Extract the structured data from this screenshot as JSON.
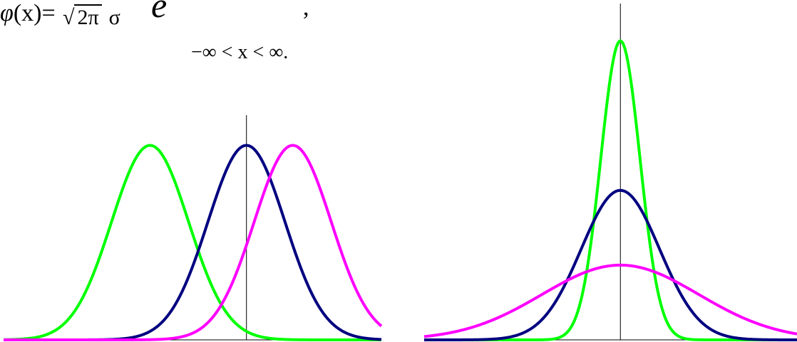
{
  "formula": {
    "lhs_fn": "φ",
    "lhs_arg": "(x)=",
    "denominator_sqrt_sign": "√",
    "denominator_radicand": "2π",
    "denominator_sigma": "σ",
    "exp_base": "e",
    "trailing_comma": ",",
    "domain": "−∞ < x < ∞."
  },
  "chart_data": [
    {
      "type": "line",
      "title": "",
      "xlabel": "",
      "ylabel": "",
      "grid": false,
      "xlim": [
        -6.3,
        3.5
      ],
      "ylim": [
        0,
        0.42
      ],
      "vertical_axis_at_x": 0,
      "series": [
        {
          "mu": -2.5,
          "sigma": 1,
          "color": "#00ff00",
          "x": [
            -6.3,
            -5.5,
            -4.5,
            -3.5,
            -3,
            -2.5,
            -2,
            -1.5,
            -1,
            0,
            1,
            2,
            3.5
          ],
          "y": [
            0.0003,
            0.0044,
            0.054,
            0.242,
            0.352,
            0.399,
            0.352,
            0.242,
            0.13,
            0.0175,
            0.0009,
            2e-05,
            0
          ]
        },
        {
          "mu": 0,
          "sigma": 1,
          "color": "#000080",
          "x": [
            -6.3,
            -4,
            -3,
            -2,
            -1,
            -0.5,
            0,
            0.5,
            1,
            2,
            3,
            3.5
          ],
          "y": [
            0,
            0.0001,
            0.0044,
            0.054,
            0.242,
            0.352,
            0.399,
            0.352,
            0.242,
            0.054,
            0.0044,
            0.0009
          ]
        },
        {
          "mu": 1.2,
          "sigma": 1,
          "color": "#ff00ff",
          "x": [
            -6.3,
            -3,
            -2,
            -1,
            0,
            0.7,
            1.2,
            1.7,
            2.2,
            3,
            3.5
          ],
          "y": [
            0,
            6e-05,
            0.0024,
            0.035,
            0.194,
            0.352,
            0.399,
            0.352,
            0.242,
            0.079,
            0.028
          ]
        }
      ]
    },
    {
      "type": "line",
      "title": "",
      "xlabel": "",
      "ylabel": "",
      "grid": false,
      "xlim": [
        -5,
        4.5
      ],
      "ylim": [
        0,
        0.85
      ],
      "vertical_axis_at_x": 0,
      "series": [
        {
          "mu": 0,
          "sigma": 0.5,
          "color": "#00ff00",
          "x": [
            -5,
            -1.5,
            -1,
            -0.5,
            0,
            0.5,
            1,
            1.5,
            4.5
          ],
          "y": [
            0,
            0.0089,
            0.108,
            0.484,
            0.798,
            0.484,
            0.108,
            0.0089,
            0
          ]
        },
        {
          "mu": 0,
          "sigma": 1,
          "color": "#000080",
          "x": [
            -5,
            -3,
            -2,
            -1,
            0,
            1,
            2,
            3,
            4.5
          ],
          "y": [
            0,
            0.0044,
            0.054,
            0.242,
            0.399,
            0.242,
            0.054,
            0.0044,
            0
          ]
        },
        {
          "mu": 0,
          "sigma": 2,
          "color": "#ff00ff",
          "x": [
            -5,
            -4,
            -2,
            -1,
            0,
            1,
            2,
            4,
            4.5
          ],
          "y": [
            0.0088,
            0.027,
            0.121,
            0.176,
            0.199,
            0.176,
            0.121,
            0.027,
            0.016
          ]
        }
      ]
    }
  ]
}
